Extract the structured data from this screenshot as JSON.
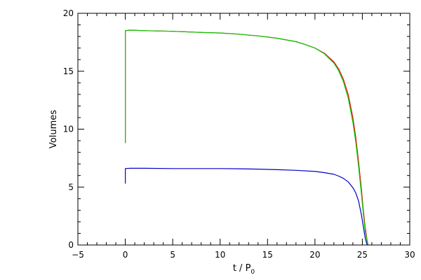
{
  "chart_data": {
    "type": "line",
    "title": "",
    "xlabel": "t / P",
    "xlabel_subscript": "0",
    "ylabel": "Volumes",
    "xlim": [
      -5,
      30
    ],
    "ylim": [
      0,
      20
    ],
    "x_ticks": [
      "−5",
      "0",
      "5",
      "10",
      "15",
      "20",
      "25",
      "30"
    ],
    "x_tick_values": [
      -5,
      0,
      5,
      10,
      15,
      20,
      25,
      30
    ],
    "y_ticks": [
      "0",
      "5",
      "10",
      "15",
      "20"
    ],
    "y_tick_values": [
      0,
      5,
      10,
      15,
      20
    ],
    "grid": false,
    "legend": "none",
    "series": [
      {
        "color": "#ff0000",
        "x": [
          0,
          0,
          0.5,
          2,
          5,
          8,
          10,
          12,
          14,
          16,
          18,
          19,
          20,
          21,
          22,
          22.5,
          23,
          23.5,
          24,
          24.3,
          24.6,
          24.9,
          25.1,
          25.3,
          25.5,
          25.6
        ],
        "y": [
          8.8,
          18.5,
          18.55,
          18.5,
          18.45,
          18.35,
          18.3,
          18.2,
          18.05,
          17.85,
          17.55,
          17.3,
          17.0,
          16.55,
          15.8,
          15.2,
          14.3,
          13.0,
          11.0,
          9.3,
          7.2,
          4.8,
          3.0,
          1.5,
          0.4,
          0.0
        ]
      },
      {
        "color": "#00cc00",
        "x": [
          0,
          0,
          0.5,
          2,
          5,
          8,
          10,
          12,
          14,
          16,
          18,
          19,
          20,
          21,
          22,
          22.5,
          23,
          23.5,
          24,
          24.3,
          24.6,
          24.9,
          25.1,
          25.3,
          25.5,
          25.6
        ],
        "y": [
          8.8,
          18.5,
          18.55,
          18.5,
          18.45,
          18.35,
          18.3,
          18.2,
          18.05,
          17.85,
          17.55,
          17.3,
          17.0,
          16.5,
          15.7,
          15.05,
          14.1,
          12.7,
          10.6,
          8.9,
          6.8,
          4.4,
          2.7,
          1.2,
          0.3,
          0.0
        ]
      },
      {
        "color": "#0000cc",
        "x": [
          0,
          0,
          0.5,
          2,
          5,
          8,
          10,
          12,
          14,
          16,
          18,
          20,
          21,
          22,
          22.5,
          23,
          23.5,
          24,
          24.3,
          24.6,
          24.9,
          25.1,
          25.3,
          25.5
        ],
        "y": [
          5.3,
          6.6,
          6.62,
          6.62,
          6.6,
          6.6,
          6.6,
          6.58,
          6.55,
          6.5,
          6.45,
          6.35,
          6.25,
          6.1,
          5.95,
          5.75,
          5.45,
          4.95,
          4.5,
          3.8,
          2.6,
          1.6,
          0.6,
          0.0
        ]
      }
    ]
  }
}
